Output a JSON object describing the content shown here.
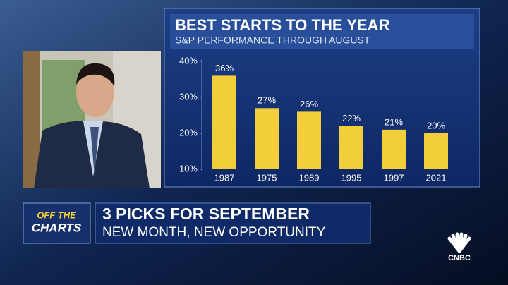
{
  "chart_data": {
    "type": "bar",
    "title": "BEST STARTS TO THE YEAR",
    "subtitle": "S&P PERFORMANCE THROUGH AUGUST",
    "categories": [
      "1987",
      "1975",
      "1989",
      "1995",
      "1997",
      "2021"
    ],
    "values": [
      36,
      27,
      26,
      22,
      21,
      20
    ],
    "value_labels": [
      "36%",
      "27%",
      "26%",
      "22%",
      "21%",
      "20%"
    ],
    "color": "#f2cf3a",
    "ylim": [
      10,
      40
    ],
    "yticks": [
      {
        "value": 10,
        "label": "10%"
      },
      {
        "value": 20,
        "label": "20%"
      },
      {
        "value": 30,
        "label": "30%"
      },
      {
        "value": 40,
        "label": "40%"
      }
    ],
    "grid": false
  },
  "lower_third": {
    "show": [
      "OFF THE",
      "CHARTS"
    ],
    "headline": "3 PICKS FOR SEPTEMBER",
    "subhead": "NEW MONTH, NEW OPPORTUNITY"
  },
  "network": "CNBC"
}
